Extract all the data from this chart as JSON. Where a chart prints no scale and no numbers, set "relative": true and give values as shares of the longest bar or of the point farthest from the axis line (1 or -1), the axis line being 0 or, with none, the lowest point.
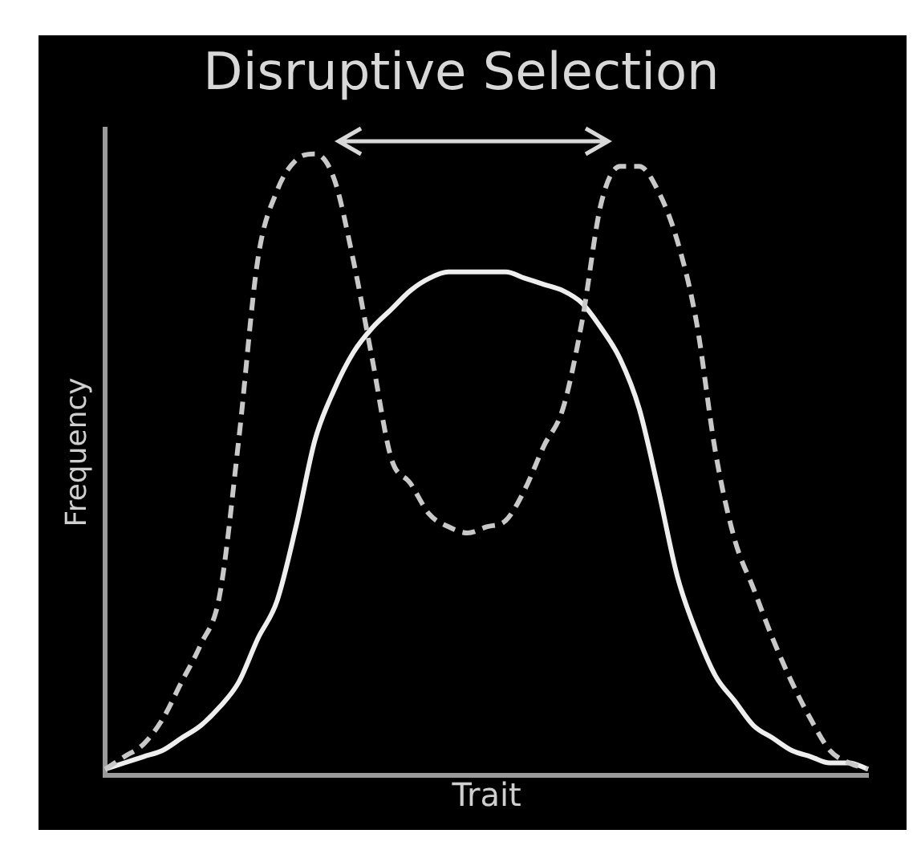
{
  "chart_data": {
    "type": "line",
    "title": "Disruptive Selection",
    "xlabel": "Trait",
    "ylabel": "Frequency",
    "relative": true,
    "legend": false,
    "marker": "none",
    "categories": [
      null,
      null,
      null,
      null,
      null,
      null,
      null,
      null,
      null,
      null,
      null,
      null,
      null,
      null,
      null,
      null,
      null,
      null,
      null,
      null,
      null,
      null,
      null,
      null,
      null,
      null,
      null,
      null,
      null,
      null,
      null,
      null,
      null,
      null,
      null,
      null,
      null,
      null,
      null,
      null,
      null
    ],
    "series": [
      {
        "color": "#c8c8c8",
        "line_style": "dashed",
        "values": [
          0.01,
          0.03,
          0.05,
          0.09,
          0.15,
          0.21,
          0.29,
          0.54,
          0.83,
          0.94,
          0.99,
          1,
          0.96,
          0.83,
          0.67,
          0.51,
          0.47,
          0.42,
          0.4,
          0.39,
          0.4,
          0.41,
          0.46,
          0.53,
          0.59,
          0.73,
          0.92,
          0.98,
          0.98,
          0.94,
          0.86,
          0.73,
          0.52,
          0.38,
          0.3,
          0.22,
          0.15,
          0.09,
          0.04,
          0.02,
          0.01
        ]
      },
      {
        "color": "#eeeeee",
        "line_style": "solid",
        "values": [
          0.01,
          0.02,
          0.03,
          0.04,
          0.06,
          0.08,
          0.11,
          0.15,
          0.22,
          0.28,
          0.4,
          0.54,
          0.62,
          0.68,
          0.72,
          0.75,
          0.78,
          0.8,
          0.81,
          0.81,
          0.81,
          0.81,
          0.8,
          0.79,
          0.78,
          0.76,
          0.72,
          0.67,
          0.59,
          0.46,
          0.32,
          0.23,
          0.16,
          0.12,
          0.08,
          0.06,
          0.04,
          0.03,
          0.02,
          0.02,
          0.01
        ]
      }
    ]
  }
}
